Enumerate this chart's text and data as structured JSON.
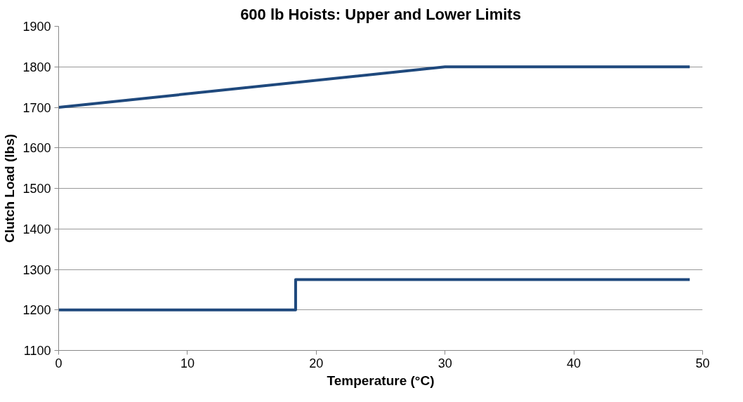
{
  "chart_data": {
    "type": "line",
    "title": "600 lb Hoists: Upper and Lower Limits",
    "xlabel": "Temperature (°C)",
    "ylabel": "Clutch Load (lbs)",
    "series": [
      {
        "color": "#1f497d",
        "x": [
          0,
          30,
          49
        ],
        "values": [
          1700,
          1800,
          1800
        ]
      },
      {
        "color": "#1f497d",
        "x": [
          0,
          18.4,
          18.4,
          49
        ],
        "values": [
          1200,
          1200,
          1275,
          1275
        ]
      }
    ],
    "xlim": [
      0,
      50
    ],
    "xticks": [
      0,
      10,
      20,
      30,
      40,
      50
    ],
    "ylim": [
      1100,
      1900
    ],
    "yticks": [
      1100,
      1200,
      1300,
      1400,
      1500,
      1600,
      1700,
      1800,
      1900
    ],
    "grid": "y",
    "marker": "none",
    "line_style": "solid"
  }
}
